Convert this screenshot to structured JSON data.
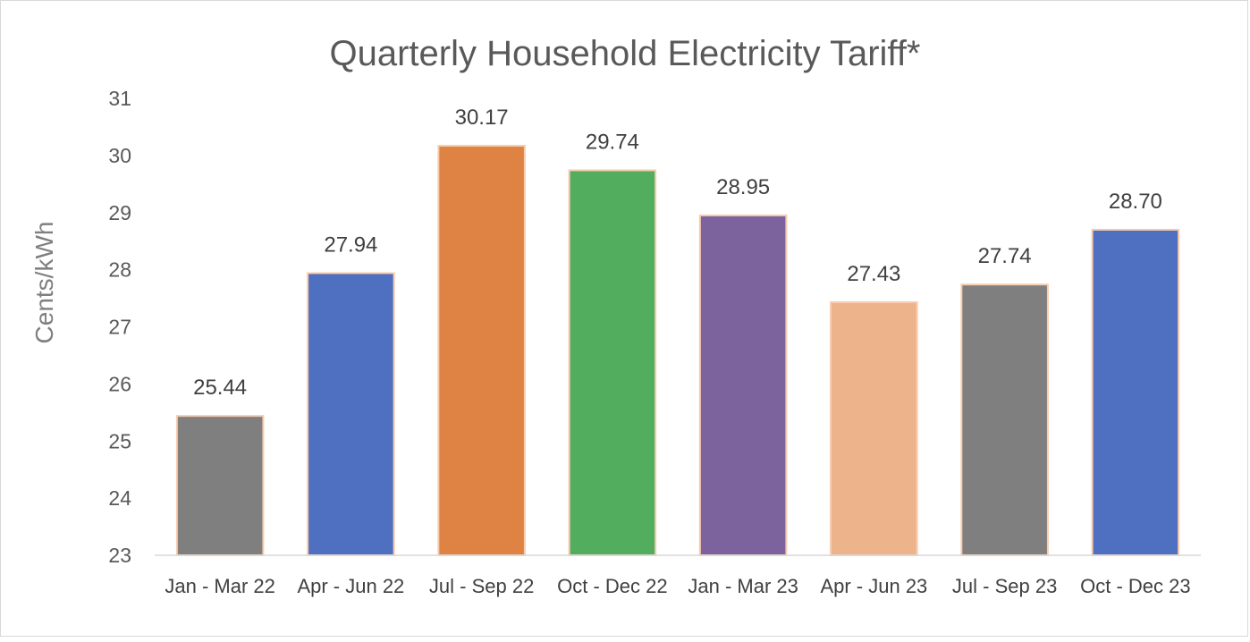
{
  "chart_data": {
    "type": "bar",
    "title": "Quarterly Household Electricity Tariff*",
    "xlabel": "",
    "ylabel": "Cents/kWh",
    "ylim": [
      23,
      31
    ],
    "yticks": [
      "23",
      "24",
      "25",
      "26",
      "27",
      "28",
      "29",
      "30",
      "31"
    ],
    "categories": [
      "Jan - Mar 22",
      "Apr - Jun 22",
      "Jul - Sep 22",
      "Oct - Dec 22",
      "Jan - Mar 23",
      "Apr - Jun 23",
      "Jul - Sep 23",
      "Oct - Dec 23"
    ],
    "values": [
      25.44,
      27.94,
      30.17,
      29.74,
      28.95,
      27.43,
      27.74,
      28.7
    ],
    "data_labels": [
      "25.44",
      "27.94",
      "30.17",
      "29.74",
      "28.95",
      "27.43",
      "27.74",
      "28.70"
    ],
    "colors": [
      "#7f7f7f",
      "#4f6fc0",
      "#df8344",
      "#52ad5e",
      "#7c639d",
      "#edb38a",
      "#7f7f7f",
      "#4f6fc0"
    ],
    "bar_outline_color": "#f8cbad",
    "grid": false,
    "legend": "none"
  }
}
